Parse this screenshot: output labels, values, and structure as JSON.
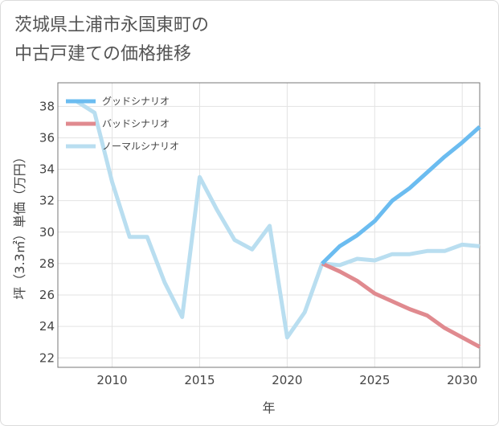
{
  "title": {
    "line1": "茨城県土浦市永国東町の",
    "line2": "中古戸建ての価格推移"
  },
  "chart_data": {
    "type": "line",
    "xlabel": "年",
    "ylabel": "坪（3.3㎡）単価（万円）",
    "xlim": [
      2006.9,
      2031
    ],
    "ylim": [
      21.4,
      39.5
    ],
    "xticks": [
      2010,
      2015,
      2020,
      2025,
      2030
    ],
    "yticks": [
      22,
      24,
      26,
      28,
      30,
      32,
      34,
      36,
      38
    ],
    "grid": true,
    "legend_position": "top-left",
    "series": [
      {
        "name": "グッドシナリオ",
        "color": "#6bbcf0",
        "x": [
          2022,
          2023,
          2024,
          2025,
          2026,
          2027,
          2028,
          2029,
          2030,
          2031
        ],
        "values": [
          28.0,
          29.1,
          29.8,
          30.7,
          32.0,
          32.8,
          33.8,
          34.8,
          35.7,
          36.7
        ]
      },
      {
        "name": "バッドシナリオ",
        "color": "#e08a8f",
        "x": [
          2022,
          2023,
          2024,
          2025,
          2026,
          2027,
          2028,
          2029,
          2030,
          2031
        ],
        "values": [
          28.0,
          27.5,
          26.9,
          26.1,
          25.6,
          25.1,
          24.7,
          23.9,
          23.3,
          22.7
        ]
      },
      {
        "name": "ノーマルシナリオ",
        "color": "#b9def0",
        "x": [
          2008,
          2009,
          2010,
          2011,
          2012,
          2013,
          2014,
          2015,
          2016,
          2017,
          2018,
          2019,
          2020,
          2021,
          2022,
          2023,
          2024,
          2025,
          2026,
          2027,
          2028,
          2029,
          2030,
          2031
        ],
        "values": [
          38.3,
          37.6,
          33.2,
          29.7,
          29.7,
          26.8,
          24.6,
          33.5,
          31.4,
          29.5,
          28.9,
          30.4,
          23.3,
          24.9,
          28.0,
          27.9,
          28.3,
          28.2,
          28.6,
          28.6,
          28.8,
          28.8,
          29.2,
          29.1
        ]
      }
    ]
  }
}
